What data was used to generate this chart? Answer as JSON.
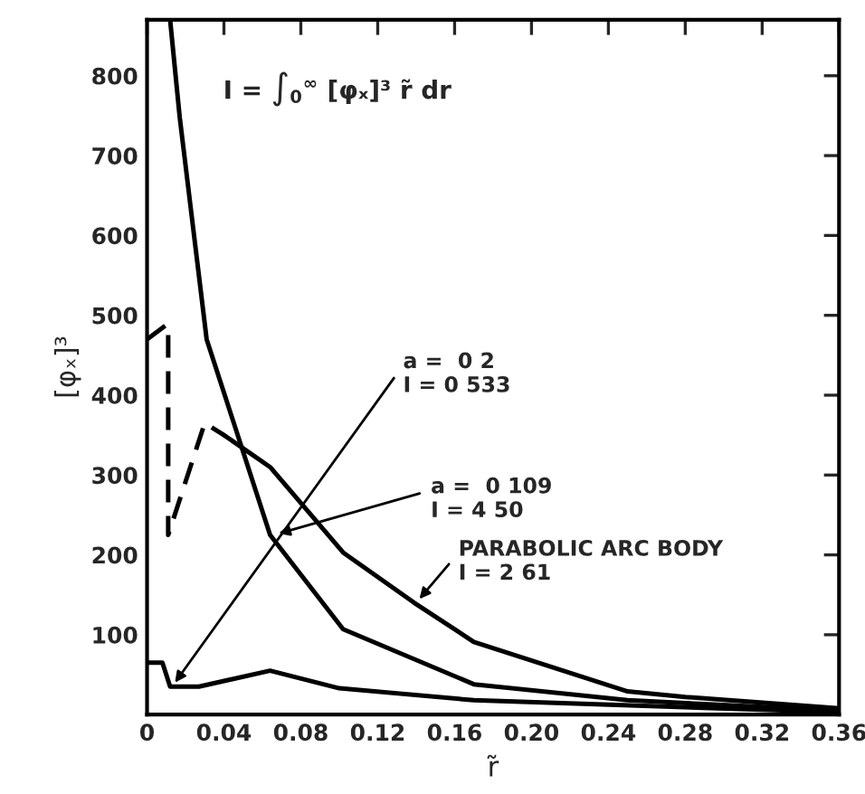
{
  "chart_data": {
    "type": "line",
    "xlabel": "r̃",
    "ylabel": "[φₓ]³",
    "xlim": [
      0,
      0.36
    ],
    "ylim": [
      0,
      870
    ],
    "xticks": [
      0,
      0.04,
      0.08,
      0.12,
      0.16,
      {
        "value": 0.2,
        "label": "0.20"
      },
      0.24,
      0.28,
      0.32,
      0.36
    ],
    "yticks": [
      100,
      200,
      300,
      400,
      500,
      600,
      700,
      800
    ],
    "grid": false,
    "legend": false,
    "marker": "none",
    "series": [
      {
        "color": "#000000",
        "line_style": "solid",
        "x": [
          0.012,
          0.017,
          0.031,
          0.064,
          0.102,
          0.17,
          0.25,
          0.36
        ],
        "values": [
          870,
          748,
          470,
          225,
          107,
          38,
          18,
          5
        ]
      },
      {
        "color": "#000000",
        "line_style": "dashed",
        "x": [
          0,
          0.01,
          0.011,
          0.011,
          0.03,
          0.04
        ],
        "values": [
          470,
          488,
          488,
          225,
          365,
          350
        ]
      },
      {
        "color": "#000000",
        "line_style": "solid",
        "x": [
          0.04,
          0.064,
          0.102,
          0.139,
          0.17,
          0.25,
          0.28,
          0.36
        ],
        "values": [
          350,
          310,
          203,
          140,
          91,
          29,
          22,
          8
        ]
      },
      {
        "color": "#000000",
        "line_style": "solid",
        "x": [
          0,
          0.008,
          0.012,
          0.027,
          0.064,
          0.1,
          0.17,
          0.36
        ],
        "values": [
          65,
          65,
          35,
          35,
          55,
          33,
          18,
          3
        ]
      }
    ],
    "annotations": [
      "I = ∫$_{0}$$^{∞}$ [φₓ]³ r̃ dr",
      {
        "text": "a =  0 2\nI = 0 533",
        "x": 0.013,
        "y": 35
      },
      {
        "text": "a =  0 109\nI = 4 50",
        "x": 0.066,
        "y": 225
      },
      {
        "text": "PARABOLIC ARC BODY\nI = 2 61",
        "x": 0.14,
        "y": 140
      }
    ]
  }
}
